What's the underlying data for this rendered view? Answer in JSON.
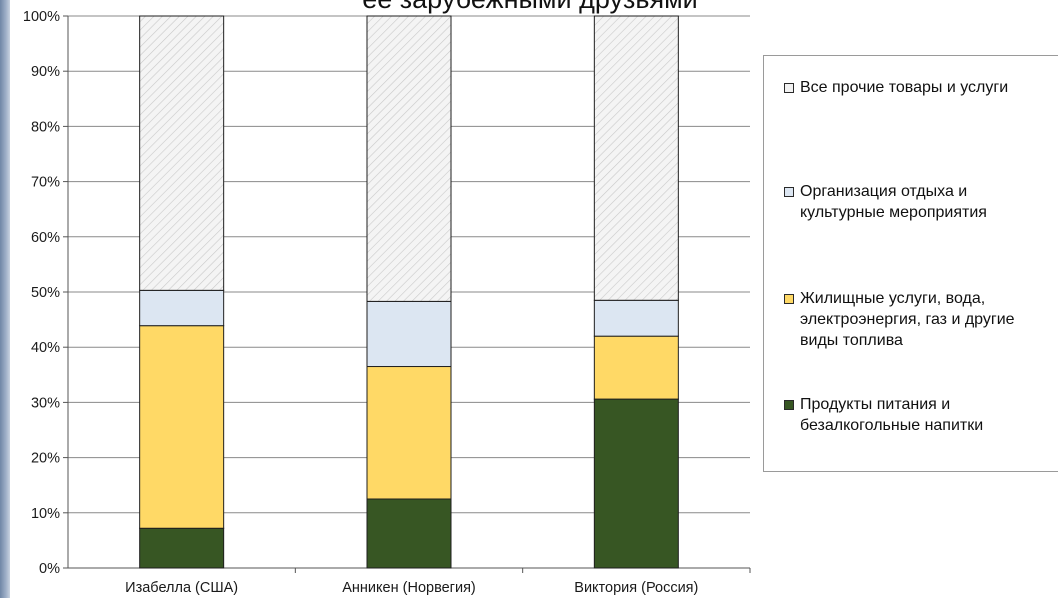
{
  "chart_data": {
    "type": "bar",
    "stacked": true,
    "title": "ее зарубежными друзьями",
    "categories": [
      "Изабелла (США)",
      "Анникен (Норвегия)",
      "Виктория (Россия)"
    ],
    "y_ticks": [
      "0%",
      "10%",
      "20%",
      "30%",
      "40%",
      "50%",
      "60%",
      "70%",
      "80%",
      "90%",
      "100%"
    ],
    "ylim": [
      0,
      100
    ],
    "grid": true,
    "legend_position": "right",
    "series": [
      {
        "name": "Продукты питания и безалкогольные напитки",
        "values": [
          7.2,
          12.5,
          30.6
        ],
        "color": "#375623"
      },
      {
        "name": "Жилищные услуги, вода, электроэнергия, газ и другие виды топлива",
        "values": [
          36.7,
          24.0,
          11.4
        ],
        "color": "#ffd966"
      },
      {
        "name": "Организация отдыха и культурные мероприятия",
        "values": [
          6.4,
          11.8,
          6.5
        ],
        "color": "#dce6f2"
      },
      {
        "name": "Все прочие товары и услуги",
        "values": [
          49.7,
          51.7,
          51.5
        ],
        "color": "#efefef",
        "pattern": "hatch"
      }
    ]
  },
  "legend": {
    "items": [
      {
        "label": "Все прочие товары и услуги",
        "color": "#f2f2f2"
      },
      {
        "label": "Организация отдыха и\nкультурные мероприятия",
        "color": "#dce6f2"
      },
      {
        "label": "Жилищные услуги, вода,\nэлектроэнергия, газ и другие\nвиды топлива",
        "color": "#ffd966"
      },
      {
        "label": "Продукты питания и\nбезалкогольные напитки",
        "color": "#375623"
      }
    ]
  }
}
